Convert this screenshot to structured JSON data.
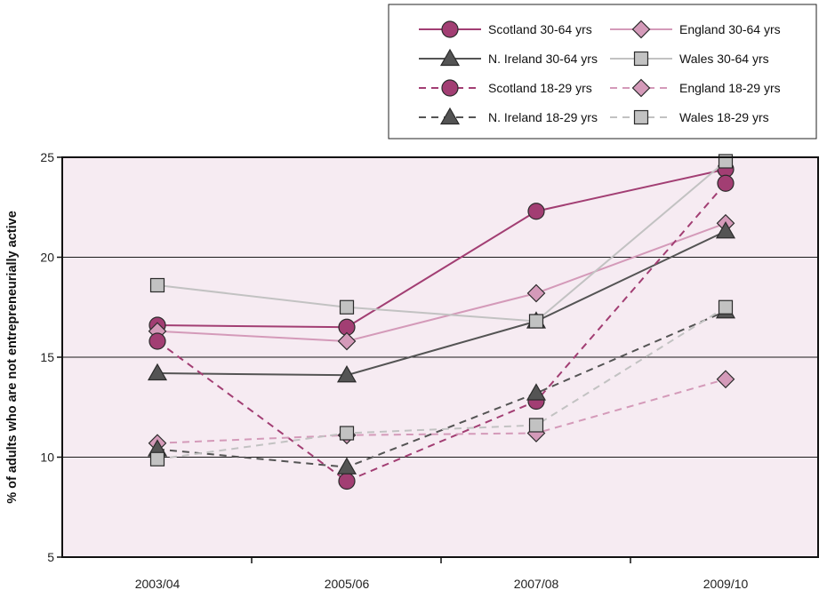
{
  "chart_data": {
    "type": "line",
    "ylabel": "% of adults who are not entrepreneurially active",
    "xlabel": "",
    "categories": [
      "2003/04",
      "2005/06",
      "2007/08",
      "2009/10"
    ],
    "ylim": [
      5,
      25
    ],
    "yticks": [
      "5",
      "10",
      "15",
      "20",
      "25"
    ],
    "grid": "horizontal",
    "legend_position": "top-right",
    "background_color": "#f6ebf2",
    "series": [
      {
        "name": "Scotland 30-64 yrs",
        "color": "#a23e73",
        "dash": "solid",
        "marker": "circle",
        "values": [
          16.6,
          16.5,
          22.3,
          24.4
        ]
      },
      {
        "name": "England 30-64 yrs",
        "color": "#d49ab9",
        "dash": "solid",
        "marker": "diamond",
        "values": [
          16.3,
          15.8,
          18.2,
          21.7
        ]
      },
      {
        "name": "N. Ireland 30-64 yrs",
        "color": "#545454",
        "dash": "solid",
        "marker": "triangle",
        "values": [
          14.2,
          14.1,
          16.8,
          21.3
        ]
      },
      {
        "name": "Wales 30-64 yrs",
        "color": "#c2c2c2",
        "dash": "solid",
        "marker": "square",
        "values": [
          18.6,
          17.5,
          16.8,
          24.8
        ]
      },
      {
        "name": "Scotland 18-29 yrs",
        "color": "#a23e73",
        "dash": "dashed",
        "marker": "circle",
        "values": [
          15.8,
          8.8,
          12.8,
          23.7
        ]
      },
      {
        "name": "England 18-29 yrs",
        "color": "#d49ab9",
        "dash": "dashed",
        "marker": "diamond",
        "values": [
          10.7,
          11.1,
          11.2,
          13.9
        ]
      },
      {
        "name": "N. Ireland 18-29 yrs",
        "color": "#545454",
        "dash": "dashed",
        "marker": "triangle",
        "values": [
          10.4,
          9.5,
          13.2,
          17.3
        ]
      },
      {
        "name": "Wales 18-29 yrs",
        "color": "#c2c2c2",
        "dash": "dashed",
        "marker": "square",
        "values": [
          9.9,
          11.2,
          11.6,
          17.5
        ]
      }
    ],
    "legend_order": [
      "Scotland 30-64 yrs",
      "England 30-64 yrs",
      "N. Ireland 30-64 yrs",
      "Wales 30-64 yrs",
      "Scotland 18-29 yrs",
      "England 18-29 yrs",
      "N. Ireland 18-29 yrs",
      "Wales 18-29 yrs"
    ]
  }
}
